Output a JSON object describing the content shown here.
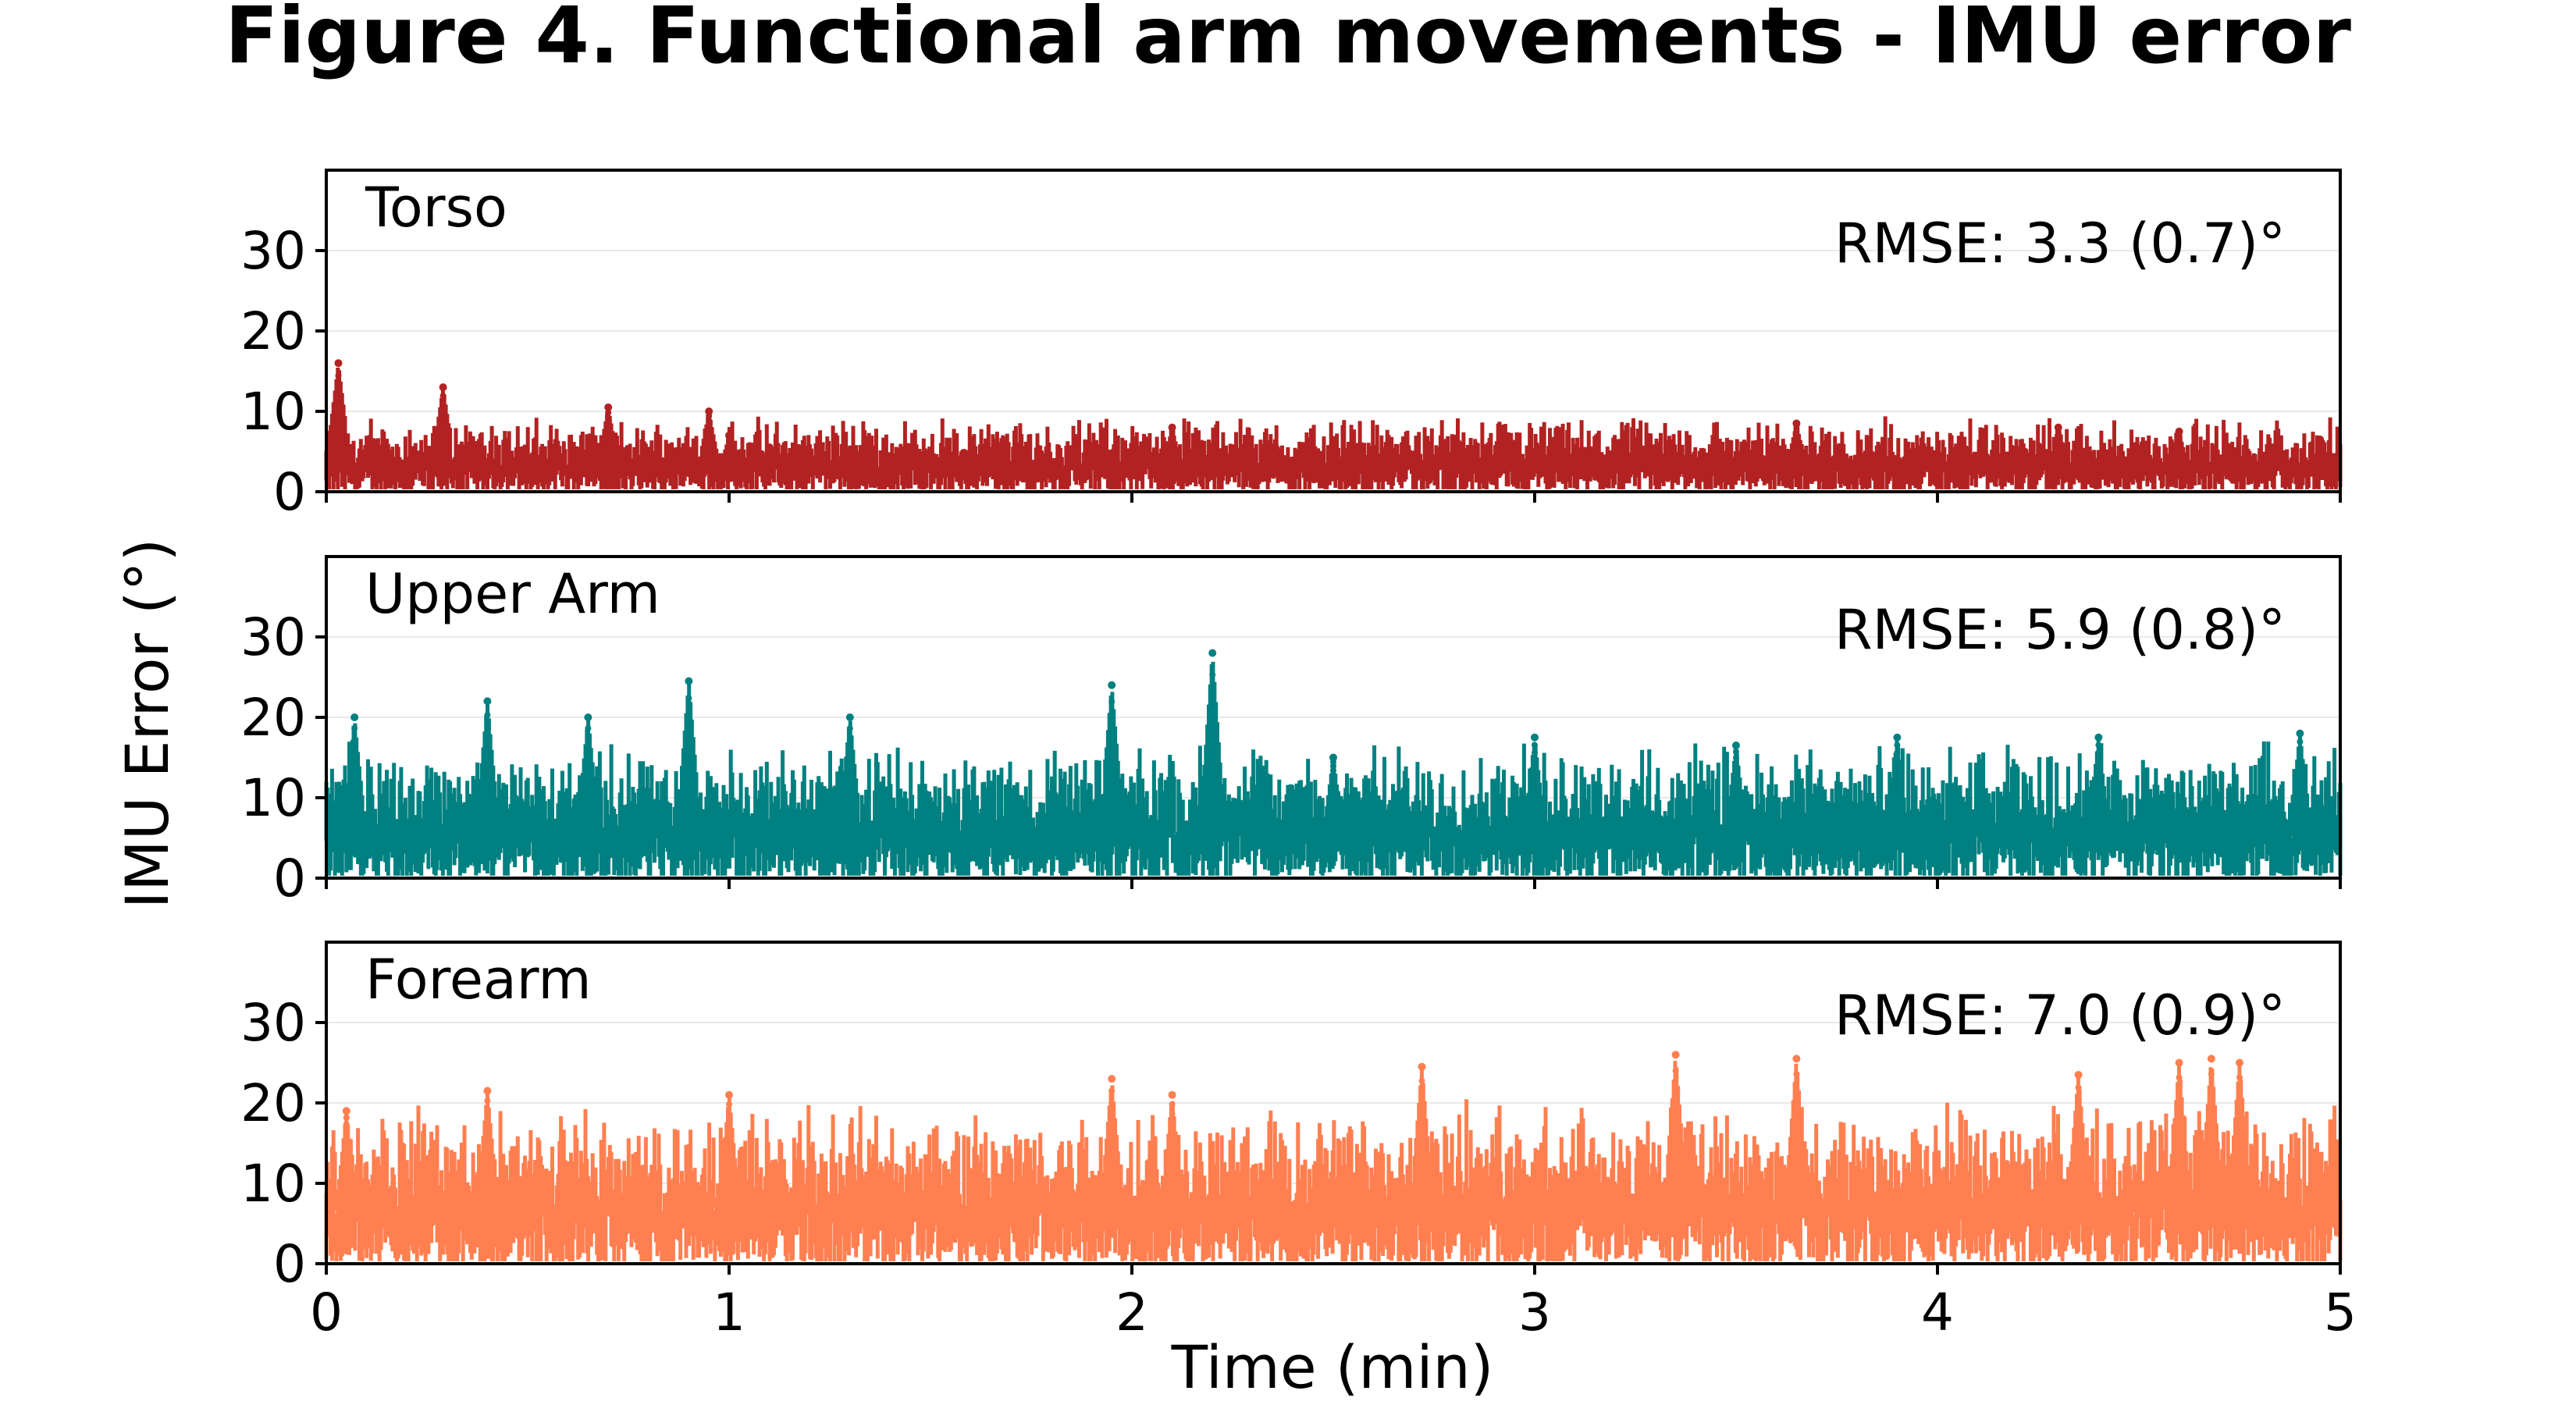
{
  "figure": {
    "title": "Figure 4. Functional arm movements - IMU error"
  },
  "chart_data": {
    "type": "scatter",
    "title": "Figure 4. Functional arm movements - IMU error",
    "xlabel": "Time (min)",
    "ylabel": "IMU Error (°)",
    "xlim": [
      0,
      5
    ],
    "ylim": [
      0,
      40
    ],
    "xticks": [
      "0",
      "1",
      "2",
      "3",
      "4",
      "5"
    ],
    "yticks": [
      "0",
      "10",
      "20",
      "30"
    ],
    "grid": true,
    "panels": [
      {
        "name": "Torso",
        "annotation": "RMSE: 3.3 (0.7)°",
        "color": "#b22222",
        "mean_error": 3.3,
        "peaks": [
          [
            0.03,
            16
          ],
          [
            0.29,
            13
          ],
          [
            0.7,
            10.5
          ],
          [
            0.95,
            10
          ],
          [
            1.0,
            7
          ],
          [
            2.1,
            8
          ],
          [
            3.65,
            8.5
          ],
          [
            4.3,
            8
          ],
          [
            4.6,
            7.5
          ],
          [
            4.95,
            6.5
          ]
        ]
      },
      {
        "name": "Upper Arm",
        "annotation": "RMSE: 5.9 (0.8)°",
        "color": "#008080",
        "mean_error": 5.9,
        "peaks": [
          [
            0.07,
            20
          ],
          [
            0.4,
            22
          ],
          [
            0.65,
            20
          ],
          [
            0.9,
            24.5
          ],
          [
            1.3,
            20
          ],
          [
            1.95,
            24
          ],
          [
            2.2,
            28
          ],
          [
            2.5,
            15
          ],
          [
            3.0,
            17.5
          ],
          [
            3.5,
            16.5
          ],
          [
            3.9,
            17.5
          ],
          [
            4.4,
            17.5
          ],
          [
            4.9,
            18
          ]
        ]
      },
      {
        "name": "Forearm",
        "annotation": "RMSE: 7.0 (0.9)°",
        "color": "#ff7f50",
        "mean_error": 7.0,
        "peaks": [
          [
            0.05,
            19
          ],
          [
            0.4,
            21.5
          ],
          [
            1.0,
            21
          ],
          [
            1.95,
            23
          ],
          [
            2.1,
            21
          ],
          [
            2.72,
            24.5
          ],
          [
            3.35,
            26
          ],
          [
            3.65,
            25.5
          ],
          [
            4.35,
            23.5
          ],
          [
            4.6,
            25
          ],
          [
            4.68,
            25.5
          ],
          [
            4.75,
            25
          ]
        ]
      }
    ]
  }
}
